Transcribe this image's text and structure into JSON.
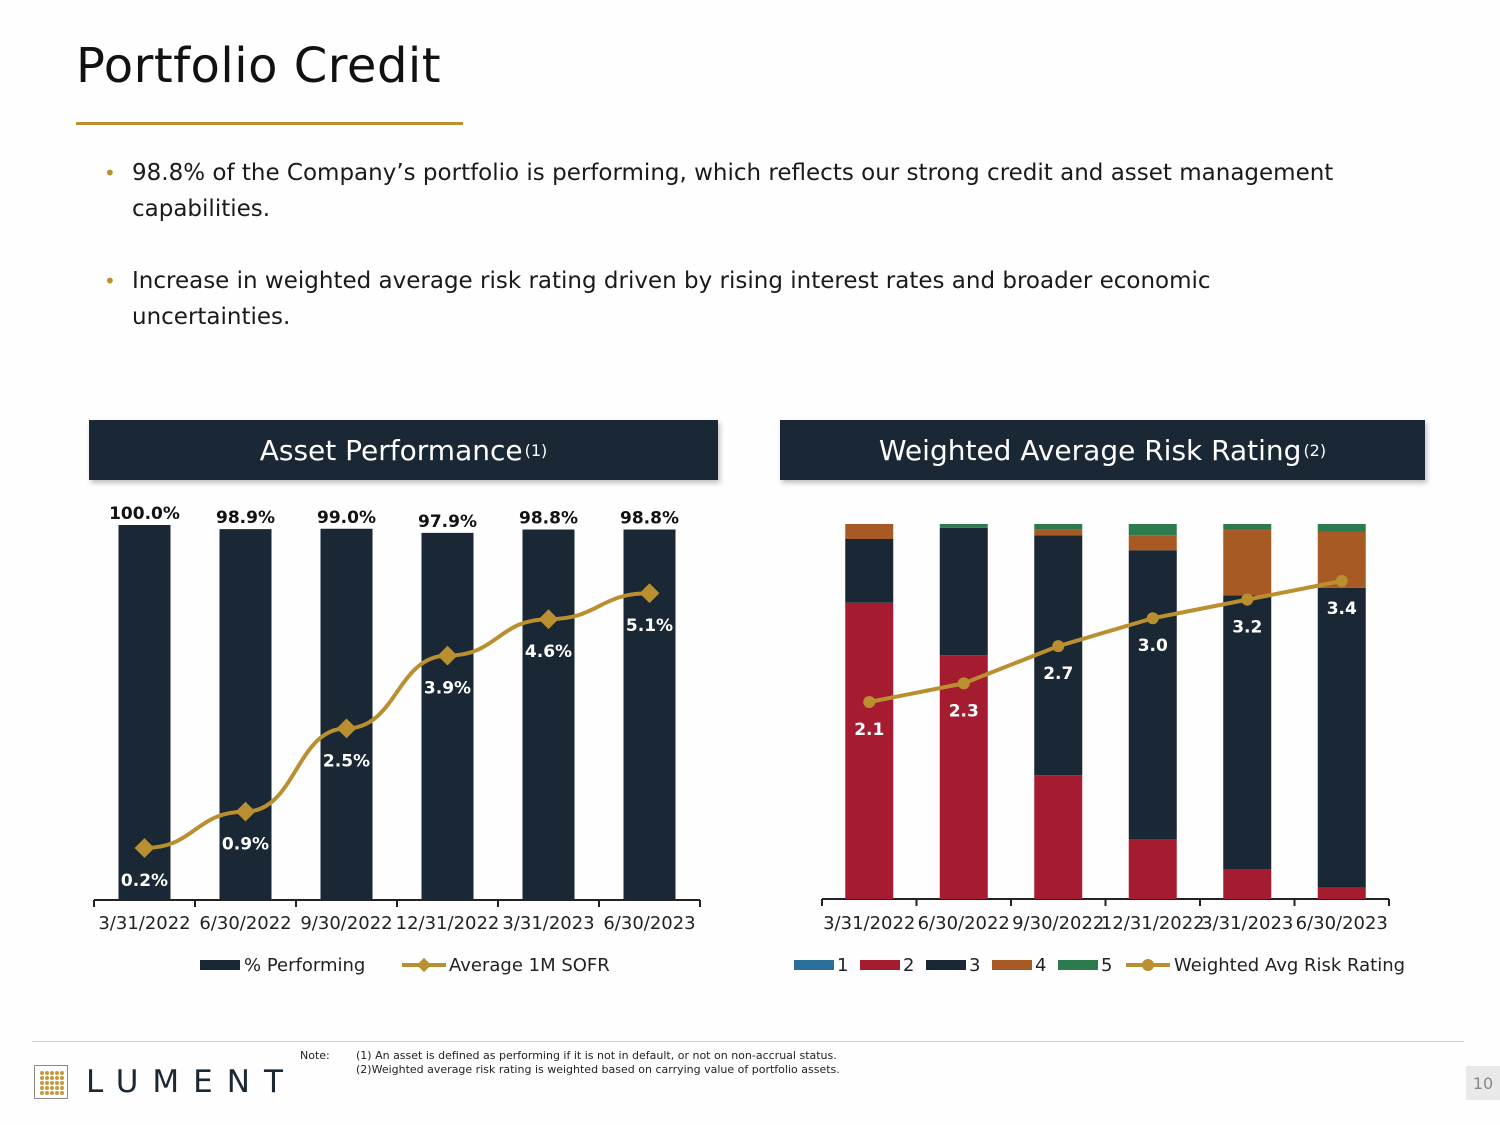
{
  "title": "Portfolio Credit",
  "bullets": [
    "98.8% of the Company’s portfolio is performing, which reflects our strong credit and asset management capabilities.",
    "Increase in weighted average risk rating driven by rising interest rates and broader economic uncertainties."
  ],
  "left_panel": {
    "title": "Asset Performance",
    "sup": "(1)"
  },
  "right_panel": {
    "title": "Weighted Average Risk Rating",
    "sup": "(2)"
  },
  "colors": {
    "navy": "#1a2734",
    "gold": "#b98f2f",
    "red": "#a51c30",
    "orange": "#a85a24",
    "green": "#2c7a4e",
    "blue": "#2a6f9b"
  },
  "chart_data": [
    {
      "type": "bar",
      "title": "Asset Performance",
      "categories": [
        "3/31/2022",
        "6/30/2022",
        "9/30/2022",
        "12/31/2022",
        "3/31/2023",
        "6/30/2023"
      ],
      "series": [
        {
          "name": "% Performing",
          "kind": "bar",
          "values": [
            100.0,
            98.9,
            99.0,
            97.9,
            98.8,
            98.8
          ],
          "labels": [
            "100.0%",
            "98.9%",
            "99.0%",
            "97.9%",
            "98.8%",
            "98.8%"
          ]
        },
        {
          "name": "Average 1M SOFR",
          "kind": "line",
          "values": [
            0.2,
            0.9,
            2.5,
            3.9,
            4.6,
            5.1
          ],
          "labels": [
            "0.2%",
            "0.9%",
            "2.5%",
            "3.9%",
            "4.6%",
            "5.1%"
          ]
        }
      ],
      "legend": [
        "% Performing",
        "Average 1M SOFR"
      ]
    },
    {
      "type": "bar",
      "stacked": true,
      "title": "Weighted Average Risk Rating",
      "categories": [
        "3/31/2022",
        "6/30/2022",
        "9/30/2022",
        "12/31/2022",
        "3/31/2023",
        "6/30/2023"
      ],
      "series": [
        {
          "name": "1",
          "values": [
            0,
            0,
            0,
            0,
            0,
            0
          ]
        },
        {
          "name": "2",
          "values": [
            79,
            65,
            33,
            16,
            8,
            3
          ]
        },
        {
          "name": "3",
          "values": [
            17,
            34,
            64,
            77,
            73,
            80
          ]
        },
        {
          "name": "4",
          "values": [
            4,
            0,
            1.5,
            4,
            17.5,
            15
          ]
        },
        {
          "name": "5",
          "values": [
            0,
            1,
            1.5,
            3,
            1.5,
            2
          ]
        },
        {
          "name": "Weighted Avg Risk Rating",
          "kind": "line",
          "values": [
            2.1,
            2.3,
            2.7,
            3.0,
            3.2,
            3.4
          ],
          "labels": [
            "2.1",
            "2.3",
            "2.7",
            "3.0",
            "3.2",
            "3.4"
          ]
        }
      ],
      "legend": [
        "1",
        "2",
        "3",
        "4",
        "5",
        "Weighted Avg Risk Rating"
      ]
    }
  ],
  "footer": {
    "brand": "LUMENT",
    "note_label": "Note:",
    "notes": [
      "(1) An asset is defined as performing if it is not in default, or not on non-accrual status.",
      "(2)Weighted average risk rating is weighted based on carrying value of portfolio assets."
    ],
    "page": "10"
  }
}
